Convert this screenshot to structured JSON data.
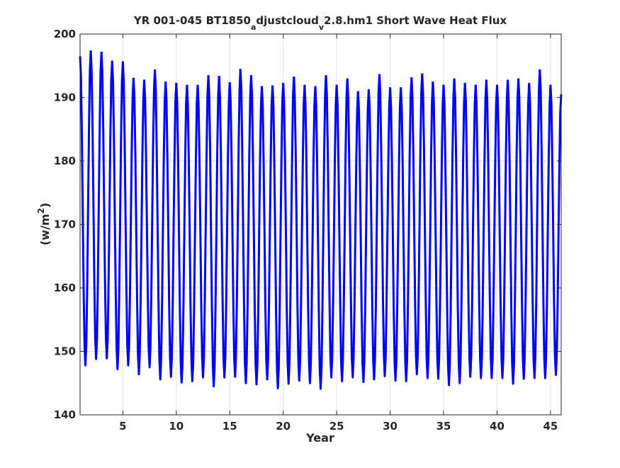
{
  "chart_data": {
    "type": "line",
    "title": {
      "prefix": "YR 001-045 BT1850",
      "sub1": "a",
      "mid": "djustcloud",
      "sub2": "v",
      "suffix": "2.8.hm1 Short Wave Heat Flux"
    },
    "xlabel": "Year",
    "ylabel": {
      "base": "(w/m",
      "sup": "2",
      "close": ")"
    },
    "xlim": [
      1,
      46
    ],
    "ylim": [
      140,
      200
    ],
    "xticks": [
      5,
      10,
      15,
      20,
      25,
      30,
      35,
      40,
      45
    ],
    "yticks": [
      140,
      150,
      160,
      170,
      180,
      190,
      200
    ],
    "grid": true,
    "line_color": "#0000ff",
    "series": [
      {
        "sampling": "monthly",
        "x_start": 1.0,
        "annual_maxima": [
          196.5,
          197.4,
          197.2,
          195.8,
          195.7,
          193.1,
          192.8,
          194.4,
          192.5,
          192.3,
          192.0,
          192.0,
          193.5,
          193.4,
          192.4,
          194.5,
          193.5,
          191.8,
          191.9,
          192.3,
          193.3,
          192.0,
          191.8,
          193.5,
          192.0,
          193.0,
          191.0,
          191.3,
          193.7,
          191.6,
          191.6,
          193.2,
          193.8,
          192.5,
          192.0,
          193.0,
          192.3,
          192.0,
          192.8,
          192.0,
          192.8,
          193.0,
          192.3,
          194.4,
          192.0
        ],
        "annual_minima": [
          147.8,
          148.8,
          148.9,
          147.2,
          147.8,
          146.4,
          147.5,
          145.6,
          146.0,
          145.1,
          145.3,
          145.9,
          144.5,
          145.9,
          146.0,
          145.0,
          144.8,
          145.6,
          144.2,
          144.9,
          145.4,
          145.0,
          144.1,
          145.9,
          145.3,
          145.9,
          145.2,
          145.6,
          146.1,
          145.4,
          145.3,
          146.4,
          145.8,
          145.7,
          144.7,
          145.0,
          146.0,
          145.8,
          145.8,
          145.8,
          144.9,
          145.7,
          145.8,
          145.8,
          146.3
        ],
        "end_value": 190.5
      }
    ]
  }
}
